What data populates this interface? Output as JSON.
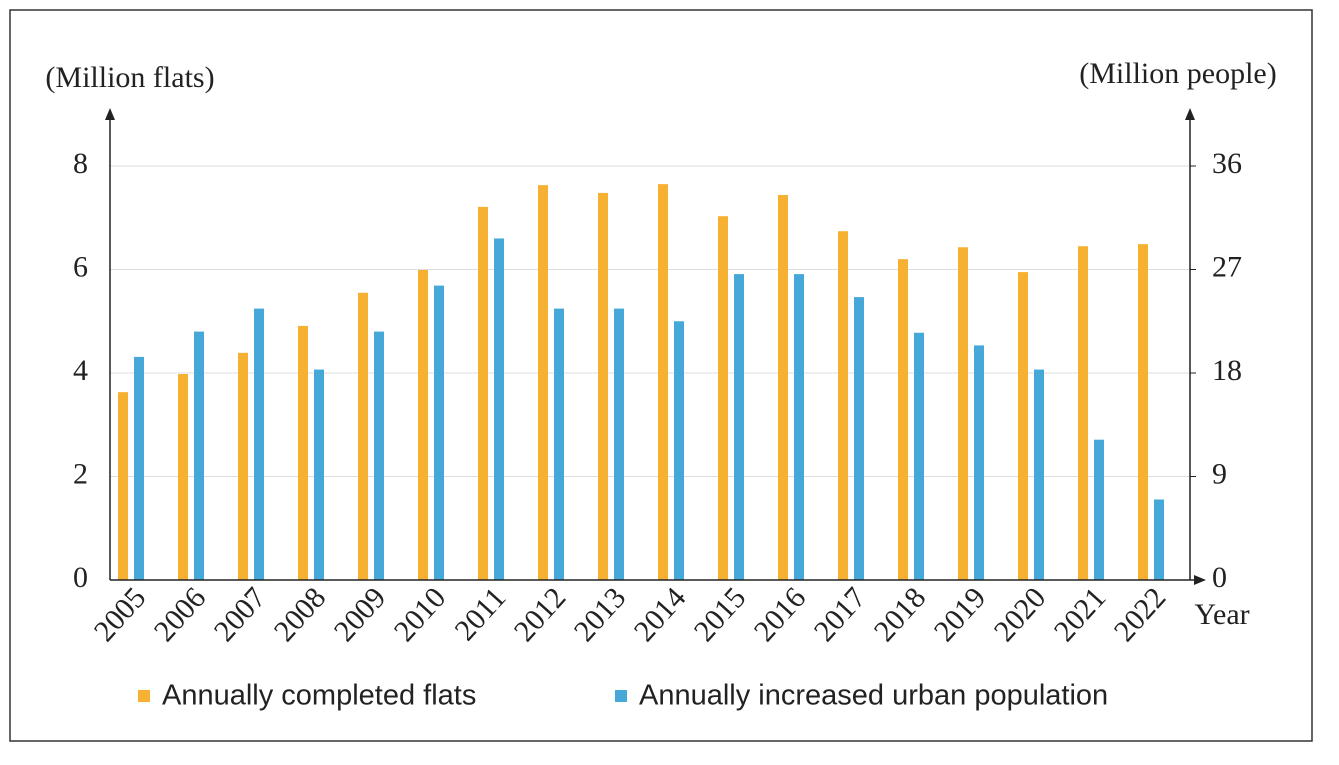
{
  "chart_data": {
    "type": "bar",
    "y_label": "(Million flats)",
    "y2_label": "(Million people)",
    "x_label": "Year",
    "categories": [
      "2005",
      "2006",
      "2007",
      "2008",
      "2009",
      "2010",
      "2011",
      "2012",
      "2013",
      "2014",
      "2015",
      "2016",
      "2017",
      "2018",
      "2019",
      "2020",
      "2021",
      "2022"
    ],
    "series": [
      {
        "name": "Annually completed flats",
        "color": "#f7b132",
        "values": [
          3.63,
          3.98,
          4.39,
          4.91,
          5.55,
          5.99,
          7.21,
          7.63,
          7.48,
          7.65,
          7.03,
          7.44,
          6.74,
          6.2,
          6.43,
          5.95,
          6.45,
          6.49
        ]
      },
      {
        "name": "Annually increased urban population",
        "color": "#45a8d9",
        "axis": "y2",
        "values": [
          19.4,
          21.6,
          23.6,
          18.3,
          21.6,
          25.6,
          29.7,
          23.6,
          23.6,
          22.5,
          26.6,
          26.6,
          24.6,
          21.5,
          20.4,
          18.3,
          12.2,
          7.0
        ]
      }
    ],
    "ylim": [
      0,
      9
    ],
    "yticks": [
      0,
      2,
      4,
      6,
      8
    ],
    "y2lim": [
      0,
      40.5
    ],
    "y2ticks": [
      0,
      9,
      18,
      27,
      36
    ],
    "grid": true
  }
}
